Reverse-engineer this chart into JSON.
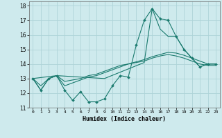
{
  "xlabel": "Humidex (Indice chaleur)",
  "xlim": [
    -0.5,
    23.5
  ],
  "ylim": [
    11,
    18.3
  ],
  "yticks": [
    11,
    12,
    13,
    14,
    15,
    16,
    17,
    18
  ],
  "xticks": [
    0,
    1,
    2,
    3,
    4,
    5,
    6,
    7,
    8,
    9,
    10,
    11,
    12,
    13,
    14,
    15,
    16,
    17,
    18,
    19,
    20,
    21,
    22,
    23
  ],
  "bg_color": "#ceeaed",
  "grid_color": "#aed4d8",
  "line_color": "#1a7a6e",
  "lines": [
    {
      "x": [
        0,
        1,
        2,
        3,
        4,
        5,
        6,
        7,
        8,
        9,
        10,
        11,
        12,
        13,
        14,
        15,
        16,
        17,
        18,
        19,
        20,
        21,
        22,
        23
      ],
      "y": [
        13.0,
        12.2,
        13.0,
        13.2,
        12.2,
        11.5,
        12.1,
        11.4,
        11.4,
        11.6,
        12.5,
        13.2,
        13.1,
        15.3,
        17.0,
        17.8,
        17.1,
        17.0,
        15.9,
        15.0,
        14.4,
        13.8,
        14.0,
        14.0
      ],
      "marker": "D",
      "markersize": 2.0,
      "lw": 0.8
    },
    {
      "x": [
        0,
        3,
        9,
        14,
        15,
        16,
        17,
        18,
        19,
        20,
        21,
        22,
        23
      ],
      "y": [
        13.0,
        13.2,
        13.0,
        14.1,
        17.8,
        16.4,
        15.9,
        15.9,
        15.0,
        14.4,
        13.8,
        14.0,
        14.0
      ],
      "marker": null,
      "markersize": 0,
      "lw": 0.8
    },
    {
      "x": [
        0,
        1,
        2,
        3,
        4,
        5,
        6,
        7,
        8,
        9,
        10,
        11,
        12,
        13,
        14,
        15,
        16,
        17,
        18,
        19,
        20,
        21,
        22,
        23
      ],
      "y": [
        13.0,
        12.5,
        13.0,
        13.2,
        12.8,
        12.9,
        13.0,
        13.2,
        13.3,
        13.5,
        13.7,
        13.9,
        14.0,
        14.15,
        14.3,
        14.5,
        14.65,
        14.8,
        14.75,
        14.6,
        14.4,
        14.2,
        14.0,
        14.0
      ],
      "marker": null,
      "markersize": 0,
      "lw": 0.8
    },
    {
      "x": [
        0,
        1,
        2,
        3,
        4,
        5,
        6,
        7,
        8,
        9,
        10,
        11,
        12,
        13,
        14,
        15,
        16,
        17,
        18,
        19,
        20,
        21,
        22,
        23
      ],
      "y": [
        13.0,
        12.2,
        13.0,
        13.2,
        12.5,
        12.7,
        12.9,
        13.1,
        13.2,
        13.4,
        13.6,
        13.8,
        14.0,
        14.1,
        14.2,
        14.4,
        14.55,
        14.65,
        14.55,
        14.4,
        14.2,
        14.0,
        13.9,
        13.9
      ],
      "marker": null,
      "markersize": 0,
      "lw": 0.8
    }
  ]
}
